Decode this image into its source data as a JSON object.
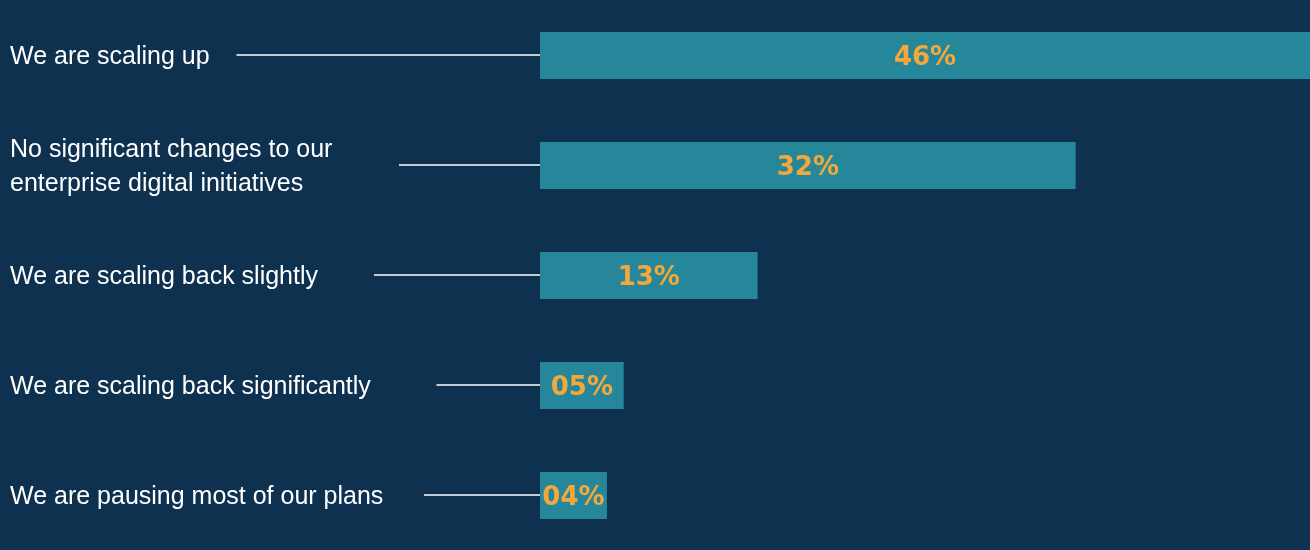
{
  "chart_data": {
    "type": "bar",
    "orientation": "horizontal",
    "categories": [
      "We are scaling up",
      "No significant changes to our enterprise digital initiatives",
      "We are scaling back slightly",
      "We are scaling back significantly",
      "We are pausing most of our plans"
    ],
    "values": [
      46,
      32,
      13,
      5,
      4
    ],
    "value_labels": [
      "46%",
      "32%",
      "13%",
      "05%",
      "04%"
    ],
    "color": "#26879a",
    "grid": false,
    "legend": false
  }
}
